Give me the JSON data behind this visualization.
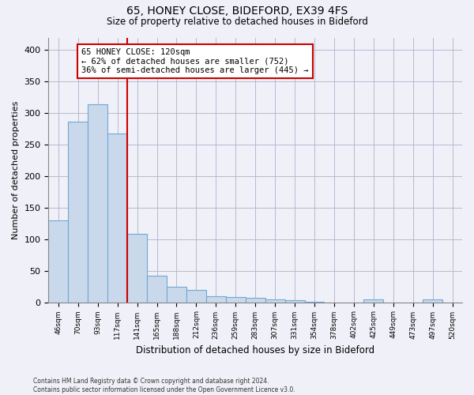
{
  "title1": "65, HONEY CLOSE, BIDEFORD, EX39 4FS",
  "title2": "Size of property relative to detached houses in Bideford",
  "xlabel": "Distribution of detached houses by size in Bideford",
  "ylabel": "Number of detached properties",
  "footnote": "Contains HM Land Registry data © Crown copyright and database right 2024.\nContains public sector information licensed under the Open Government Licence v3.0.",
  "bin_labels": [
    "46sqm",
    "70sqm",
    "93sqm",
    "117sqm",
    "141sqm",
    "165sqm",
    "188sqm",
    "212sqm",
    "236sqm",
    "259sqm",
    "283sqm",
    "307sqm",
    "331sqm",
    "354sqm",
    "378sqm",
    "402sqm",
    "425sqm",
    "449sqm",
    "473sqm",
    "497sqm",
    "520sqm"
  ],
  "bar_values": [
    130,
    287,
    314,
    268,
    108,
    42,
    25,
    20,
    10,
    8,
    7,
    5,
    3,
    1,
    0,
    0,
    4,
    0,
    0,
    5,
    0
  ],
  "bar_color": "#c9d9eb",
  "bar_edge_color": "#6fa8d4",
  "property_line_x": 3.0,
  "property_sqm": 120,
  "annotation_text1": "65 HONEY CLOSE: 120sqm",
  "annotation_text2": "← 62% of detached houses are smaller (752)",
  "annotation_text3": "36% of semi-detached houses are larger (445) →",
  "annotation_box_color": "#ffffff",
  "annotation_box_edge": "#cc0000",
  "red_line_color": "#cc0000",
  "ylim": [
    0,
    420
  ],
  "yticks": [
    0,
    50,
    100,
    150,
    200,
    250,
    300,
    350,
    400
  ],
  "background_color": "#f0f0f8",
  "grid_color": "#b0b0cc"
}
